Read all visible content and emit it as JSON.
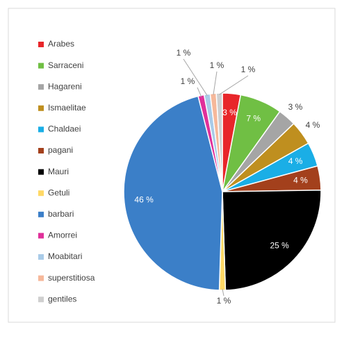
{
  "chart_data": {
    "type": "pie",
    "categories": [
      "Arabes",
      "Sarraceni",
      "Hagareni",
      "Ismaelitae",
      "Chaldaei",
      "pagani",
      "Mauri",
      "Getuli",
      "barbari",
      "Amorrei",
      "Moabitari",
      "superstitiosa",
      "gentiles"
    ],
    "values": [
      3,
      7,
      3,
      4,
      4,
      4,
      25,
      1,
      46,
      1,
      1,
      1,
      1
    ],
    "value_labels": [
      "3 %",
      "7 %",
      "3 %",
      "4 %",
      "4 %",
      "4 %",
      "25 %",
      "1 %",
      "46 %",
      "1 %",
      "1 %",
      "1 %",
      "1 %"
    ],
    "colors": [
      "#e8262a",
      "#70bf44",
      "#a5a5a5",
      "#bf8f1f",
      "#1aaee6",
      "#a3401c",
      "#000000",
      "#ffd966",
      "#3b7fc8",
      "#e0309a",
      "#a9cbe8",
      "#f6b89a",
      "#cfcfcf"
    ],
    "legend": "left"
  }
}
